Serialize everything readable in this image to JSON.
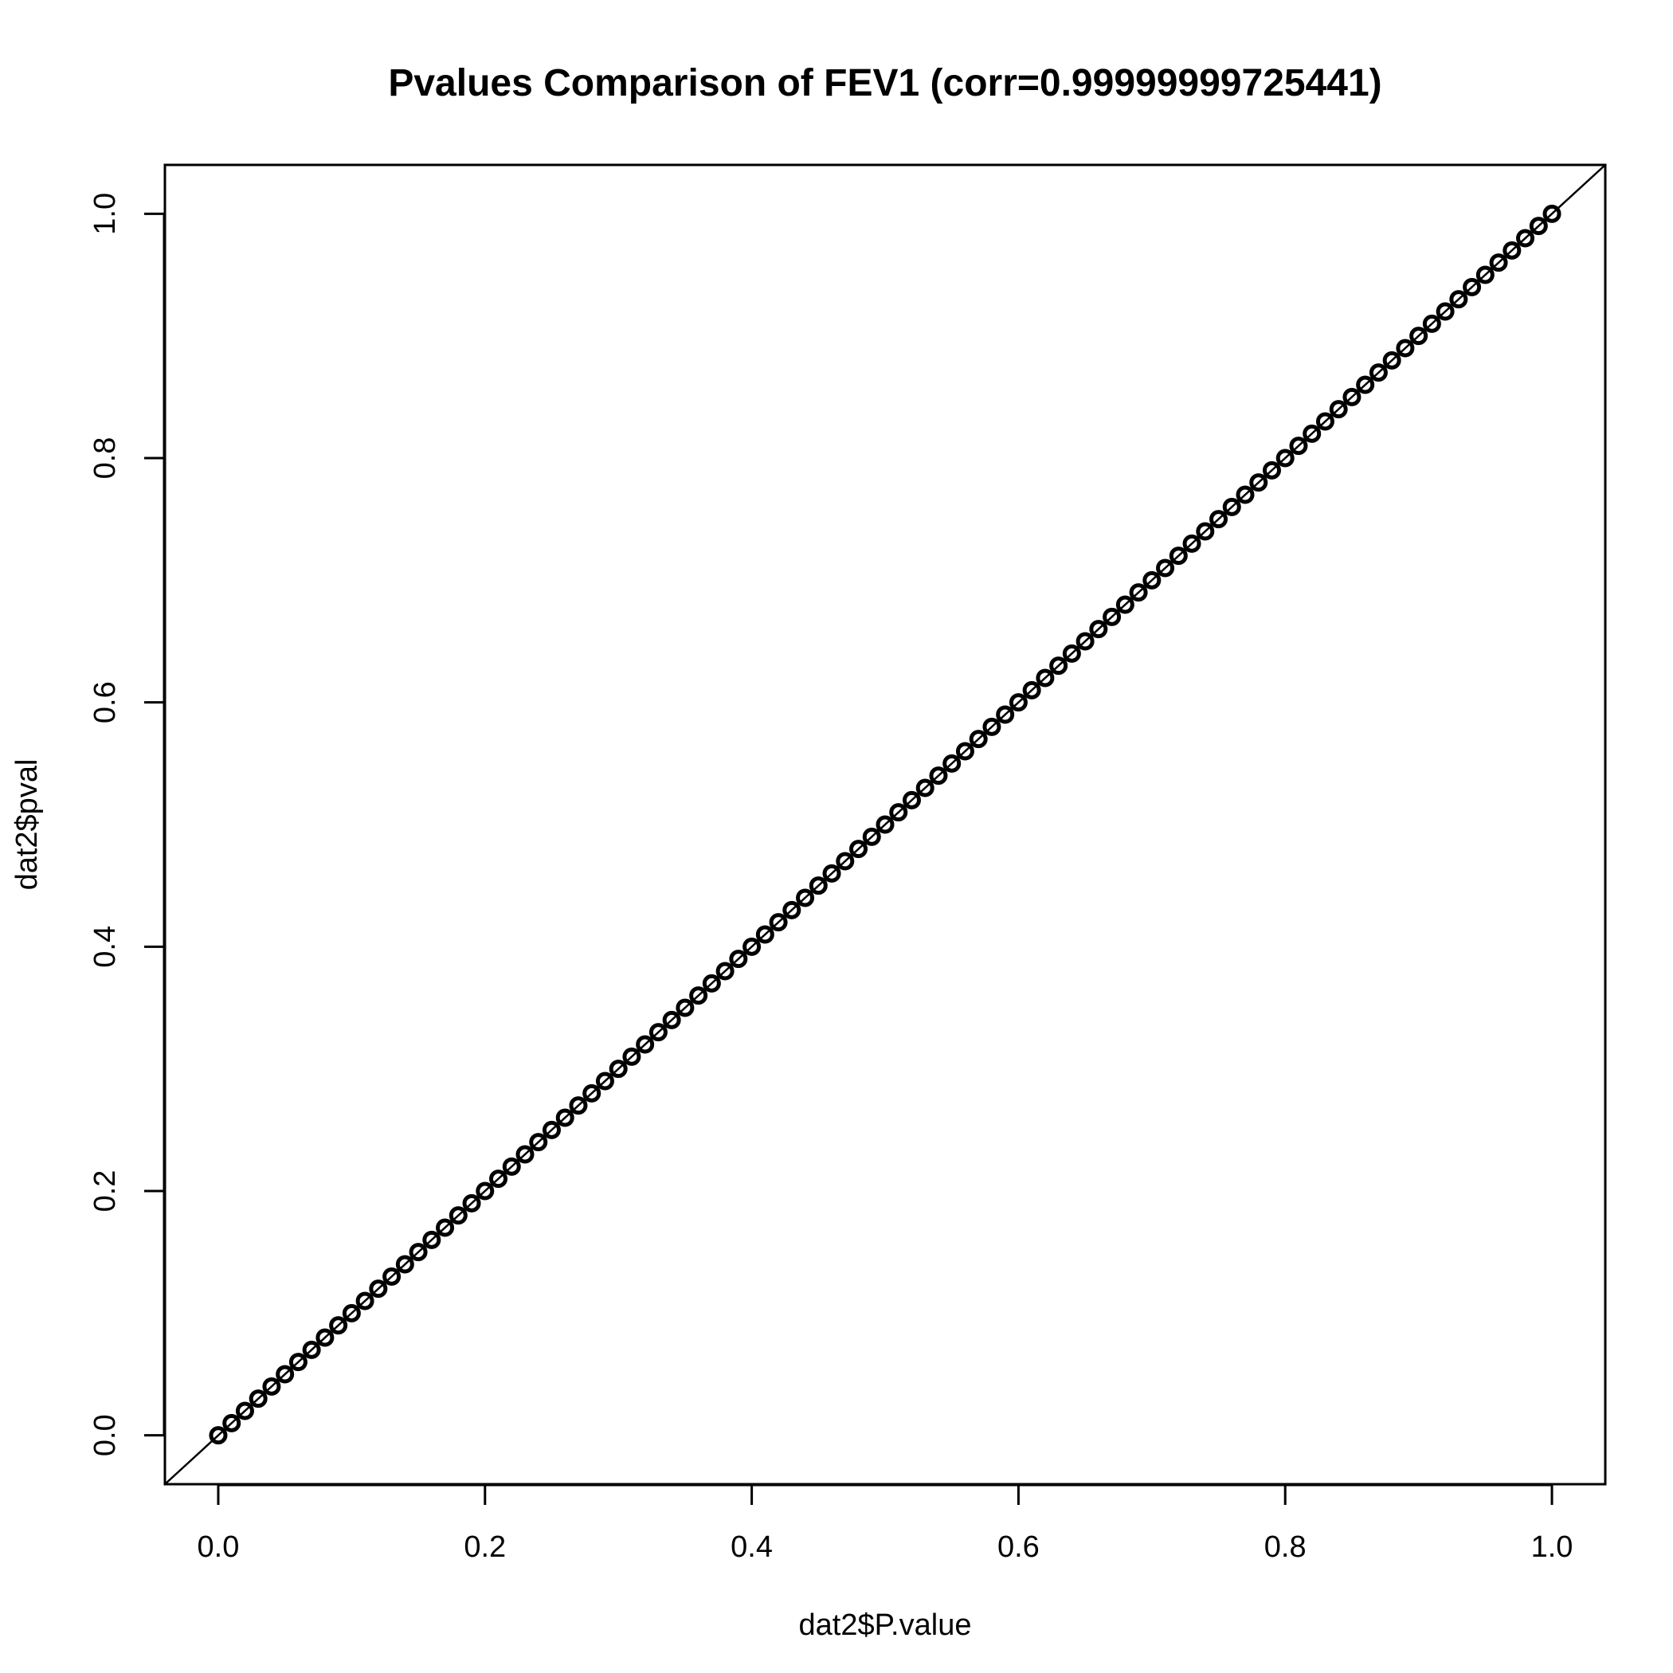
{
  "chart_data": {
    "type": "scatter",
    "title": "Pvalues Comparison of FEV1 (corr=0.99999999725441)",
    "x_label": "dat2$P.value",
    "y_label": "dat2$pval",
    "x": [
      0,
      0.01,
      0.02,
      0.03,
      0.04,
      0.05,
      0.06,
      0.07,
      0.08,
      0.09,
      0.1,
      0.11,
      0.12,
      0.13,
      0.14,
      0.15,
      0.16,
      0.17,
      0.18,
      0.19,
      0.2,
      0.21,
      0.22,
      0.23,
      0.24,
      0.25,
      0.26,
      0.27,
      0.28,
      0.29,
      0.3,
      0.31,
      0.32,
      0.33,
      0.34,
      0.35,
      0.36,
      0.37,
      0.38,
      0.39,
      0.4,
      0.41,
      0.42,
      0.43,
      0.44,
      0.45,
      0.46,
      0.47,
      0.48,
      0.49,
      0.5,
      0.51,
      0.52,
      0.53,
      0.54,
      0.55,
      0.56,
      0.57,
      0.58,
      0.59,
      0.6,
      0.61,
      0.62,
      0.63,
      0.64,
      0.65,
      0.66,
      0.67,
      0.68,
      0.69,
      0.7,
      0.71,
      0.72,
      0.73,
      0.74,
      0.75,
      0.76,
      0.77,
      0.78,
      0.79,
      0.8,
      0.81,
      0.82,
      0.83,
      0.84,
      0.85,
      0.86,
      0.87,
      0.88,
      0.89,
      0.9,
      0.91,
      0.92,
      0.93,
      0.94,
      0.95,
      0.96,
      0.97,
      0.98,
      0.99,
      1
    ],
    "values": [
      0,
      0.01,
      0.02,
      0.03,
      0.04,
      0.05,
      0.06,
      0.07,
      0.08,
      0.09,
      0.1,
      0.11,
      0.12,
      0.13,
      0.14,
      0.15,
      0.16,
      0.17,
      0.18,
      0.19,
      0.2,
      0.21,
      0.22,
      0.23,
      0.24,
      0.25,
      0.26,
      0.27,
      0.28,
      0.29,
      0.3,
      0.31,
      0.32,
      0.33,
      0.34,
      0.35,
      0.36,
      0.37,
      0.38,
      0.39,
      0.4,
      0.41,
      0.42,
      0.43,
      0.44,
      0.45,
      0.46,
      0.47,
      0.48,
      0.49,
      0.5,
      0.51,
      0.52,
      0.53,
      0.54,
      0.55,
      0.56,
      0.57,
      0.58,
      0.59,
      0.6,
      0.61,
      0.62,
      0.63,
      0.64,
      0.65,
      0.66,
      0.67,
      0.68,
      0.69,
      0.7,
      0.71,
      0.72,
      0.73,
      0.74,
      0.75,
      0.76,
      0.77,
      0.78,
      0.79,
      0.8,
      0.81,
      0.82,
      0.83,
      0.84,
      0.85,
      0.86,
      0.87,
      0.88,
      0.89,
      0.9,
      0.91,
      0.92,
      0.93,
      0.94,
      0.95,
      0.96,
      0.97,
      0.98,
      0.99,
      1
    ],
    "color": "#000000",
    "xlim": [
      -0.04,
      1.04
    ],
    "ylim": [
      -0.04,
      1.04
    ],
    "xticks": [
      {
        "value": 0,
        "label": "0.0"
      },
      0.2,
      0.4,
      0.6,
      0.8,
      {
        "value": 1,
        "label": "1.0"
      }
    ],
    "yticks": [
      {
        "value": 0,
        "label": "0.0"
      },
      0.2,
      0.4,
      0.6,
      0.8,
      {
        "value": 1,
        "label": "1.0"
      }
    ],
    "identity_line": true
  }
}
